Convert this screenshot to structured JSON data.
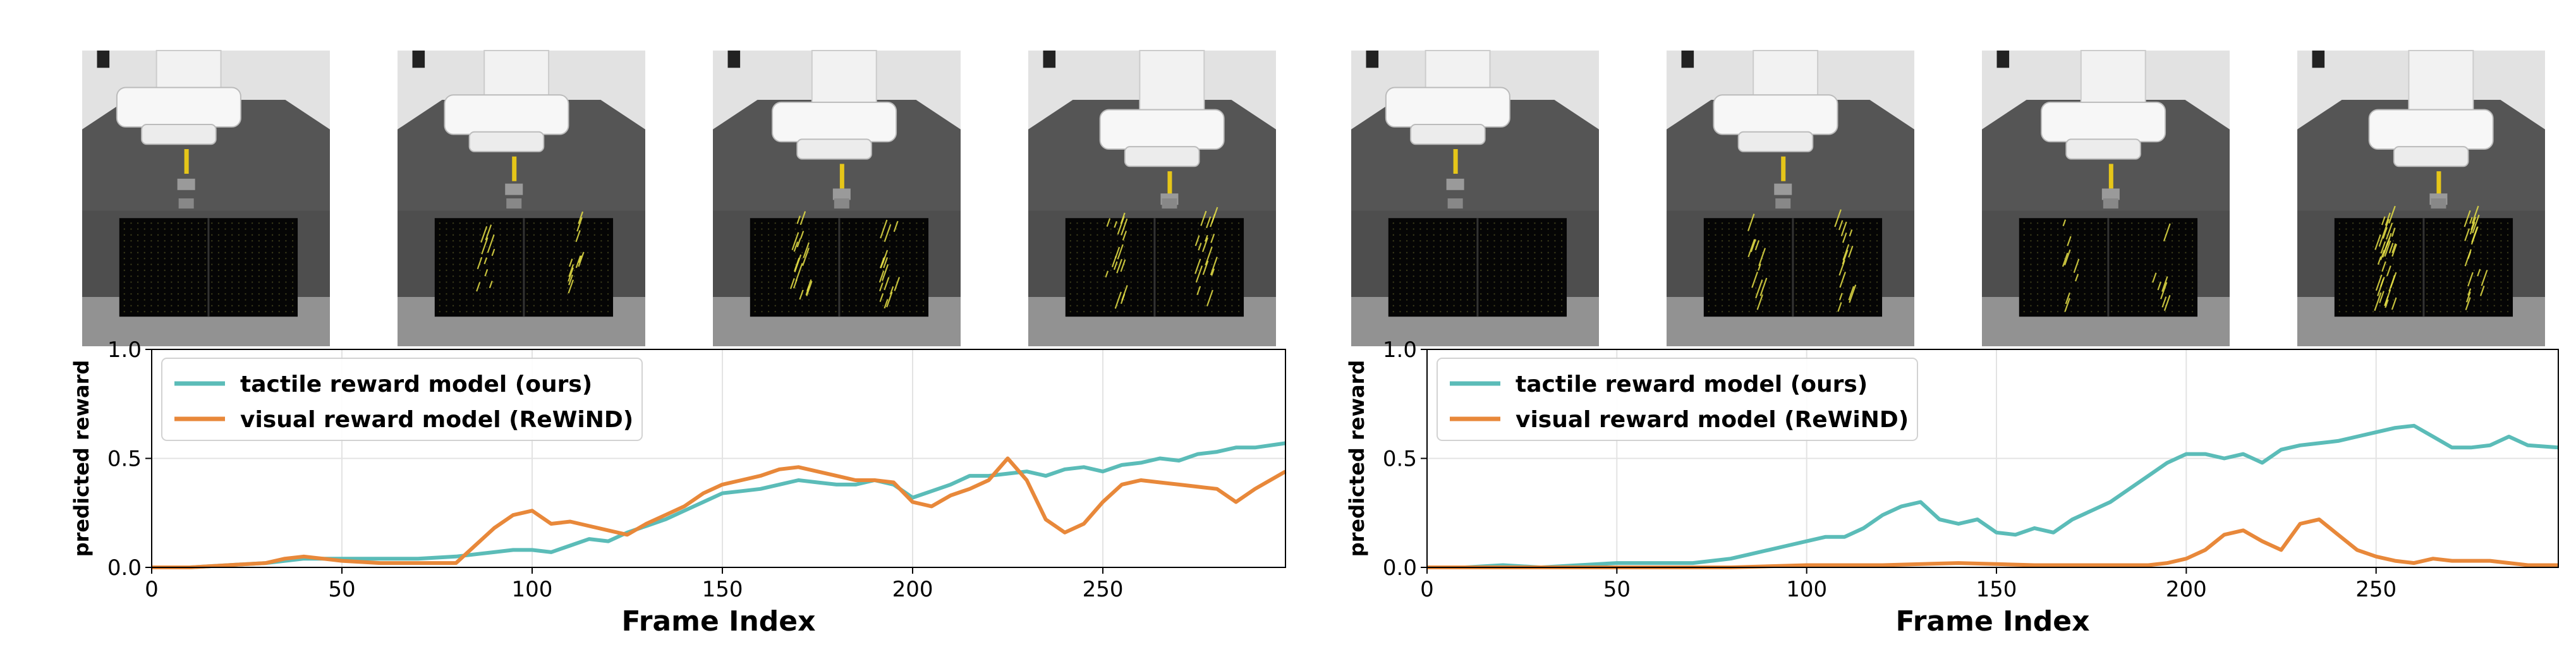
{
  "colors": {
    "tactile": "#5bbcb8",
    "visual": "#e8883a",
    "tactile_dots": "#e6e046"
  },
  "panels": [
    {
      "frames": [
        {
          "tactile_level": 0.0
        },
        {
          "tactile_level": 0.35
        },
        {
          "tactile_level": 0.55
        },
        {
          "tactile_level": 0.55
        }
      ],
      "chart_data": {
        "type": "line",
        "xlabel": "Frame Index",
        "ylabel": "predicted reward",
        "xlim": [
          0,
          298
        ],
        "ylim": [
          0.0,
          1.0
        ],
        "xticks": [
          0,
          50,
          100,
          150,
          200,
          250
        ],
        "yticks": [
          0.0,
          0.5,
          1.0
        ],
        "grid": true,
        "legend_position": "upper-left",
        "series": [
          {
            "name": "tactile reward model (ours)",
            "color": "#5bbcb8",
            "x": [
              0,
              10,
              20,
              30,
              40,
              50,
              60,
              70,
              80,
              85,
              90,
              95,
              100,
              105,
              110,
              115,
              120,
              125,
              130,
              135,
              140,
              145,
              150,
              155,
              160,
              165,
              170,
              175,
              180,
              185,
              190,
              195,
              200,
              205,
              210,
              215,
              220,
              225,
              230,
              235,
              240,
              245,
              250,
              255,
              260,
              265,
              270,
              275,
              280,
              285,
              290,
              298
            ],
            "y": [
              0.0,
              0.0,
              0.01,
              0.02,
              0.04,
              0.04,
              0.04,
              0.04,
              0.05,
              0.06,
              0.07,
              0.08,
              0.08,
              0.07,
              0.1,
              0.13,
              0.12,
              0.16,
              0.19,
              0.22,
              0.26,
              0.3,
              0.34,
              0.35,
              0.36,
              0.38,
              0.4,
              0.39,
              0.38,
              0.38,
              0.4,
              0.38,
              0.32,
              0.35,
              0.38,
              0.42,
              0.42,
              0.43,
              0.44,
              0.42,
              0.45,
              0.46,
              0.44,
              0.47,
              0.48,
              0.5,
              0.49,
              0.52,
              0.53,
              0.55,
              0.55,
              0.57
            ]
          },
          {
            "name": "visual reward model (ReWiND)",
            "color": "#e8883a",
            "x": [
              0,
              10,
              20,
              30,
              35,
              40,
              45,
              50,
              60,
              70,
              80,
              85,
              90,
              95,
              100,
              105,
              110,
              115,
              120,
              125,
              130,
              135,
              140,
              145,
              150,
              155,
              160,
              165,
              170,
              175,
              180,
              185,
              190,
              195,
              200,
              205,
              210,
              215,
              220,
              225,
              230,
              235,
              240,
              245,
              250,
              255,
              260,
              265,
              270,
              275,
              280,
              285,
              290,
              298
            ],
            "y": [
              0.0,
              0.0,
              0.01,
              0.02,
              0.04,
              0.05,
              0.04,
              0.03,
              0.02,
              0.02,
              0.02,
              0.1,
              0.18,
              0.24,
              0.26,
              0.2,
              0.21,
              0.19,
              0.17,
              0.15,
              0.2,
              0.24,
              0.28,
              0.34,
              0.38,
              0.4,
              0.42,
              0.45,
              0.46,
              0.44,
              0.42,
              0.4,
              0.4,
              0.39,
              0.3,
              0.28,
              0.33,
              0.36,
              0.4,
              0.5,
              0.4,
              0.22,
              0.16,
              0.2,
              0.3,
              0.38,
              0.4,
              0.39,
              0.38,
              0.37,
              0.36,
              0.3,
              0.36,
              0.44
            ]
          }
        ]
      }
    },
    {
      "frames": [
        {
          "tactile_level": 0.0
        },
        {
          "tactile_level": 0.4
        },
        {
          "tactile_level": 0.25
        },
        {
          "tactile_level": 0.85
        }
      ],
      "chart_data": {
        "type": "line",
        "xlabel": "Frame Index",
        "ylabel": "predicted reward",
        "xlim": [
          0,
          298
        ],
        "ylim": [
          0.0,
          1.0
        ],
        "xticks": [
          0,
          50,
          100,
          150,
          200,
          250
        ],
        "yticks": [
          0.0,
          0.5,
          1.0
        ],
        "grid": true,
        "legend_position": "upper-left",
        "series": [
          {
            "name": "tactile reward model (ours)",
            "color": "#5bbcb8",
            "x": [
              0,
              10,
              20,
              30,
              40,
              50,
              60,
              70,
              80,
              85,
              90,
              95,
              100,
              105,
              110,
              115,
              120,
              125,
              130,
              135,
              140,
              145,
              150,
              155,
              160,
              165,
              170,
              175,
              180,
              185,
              190,
              195,
              200,
              205,
              210,
              215,
              220,
              225,
              230,
              235,
              240,
              245,
              250,
              255,
              260,
              265,
              270,
              275,
              280,
              285,
              290,
              298
            ],
            "y": [
              0.0,
              0.0,
              0.01,
              0.0,
              0.01,
              0.02,
              0.02,
              0.02,
              0.04,
              0.06,
              0.08,
              0.1,
              0.12,
              0.14,
              0.14,
              0.18,
              0.24,
              0.28,
              0.3,
              0.22,
              0.2,
              0.22,
              0.16,
              0.15,
              0.18,
              0.16,
              0.22,
              0.26,
              0.3,
              0.36,
              0.42,
              0.48,
              0.52,
              0.52,
              0.5,
              0.52,
              0.48,
              0.54,
              0.56,
              0.57,
              0.58,
              0.6,
              0.62,
              0.64,
              0.65,
              0.6,
              0.55,
              0.55,
              0.56,
              0.6,
              0.56,
              0.55
            ]
          },
          {
            "name": "visual reward model (ReWiND)",
            "color": "#e8883a",
            "x": [
              0,
              20,
              40,
              60,
              80,
              100,
              120,
              140,
              160,
              180,
              190,
              195,
              200,
              205,
              210,
              215,
              220,
              225,
              230,
              235,
              240,
              245,
              250,
              255,
              260,
              265,
              270,
              280,
              290,
              298
            ],
            "y": [
              0.0,
              0.0,
              0.0,
              0.0,
              0.0,
              0.01,
              0.01,
              0.02,
              0.01,
              0.01,
              0.01,
              0.02,
              0.04,
              0.08,
              0.15,
              0.17,
              0.12,
              0.08,
              0.2,
              0.22,
              0.15,
              0.08,
              0.05,
              0.03,
              0.02,
              0.04,
              0.03,
              0.03,
              0.01,
              0.01
            ]
          }
        ]
      }
    }
  ]
}
